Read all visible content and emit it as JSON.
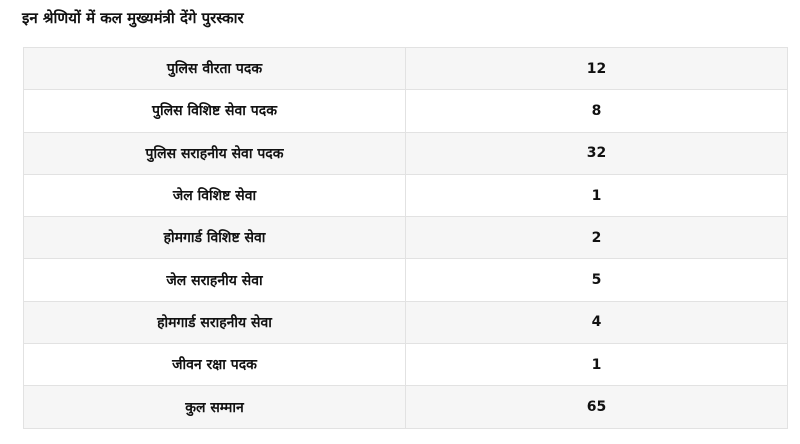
{
  "header": {
    "title": "इन श्रेणियों में कल मुख्यमंत्री देंगे पुरस्कार"
  },
  "table": {
    "rows": [
      [
        "पुलिस वीरता पदक",
        12
      ],
      [
        "पुलिस विशिष्ट सेवा पदक",
        8
      ],
      [
        "पुलिस सराहनीय सेवा पदक",
        32
      ],
      [
        "जेल विशिष्ट सेवा",
        1
      ],
      [
        "होमगार्ड विशिष्ट सेवा",
        2
      ],
      [
        "जेल सराहनीय सेवा",
        5
      ],
      [
        "होमगार्ड सराहनीय सेवा",
        4
      ],
      [
        "जीवन रक्षा पदक",
        1
      ],
      [
        "कुल सम्मान",
        65
      ]
    ]
  }
}
